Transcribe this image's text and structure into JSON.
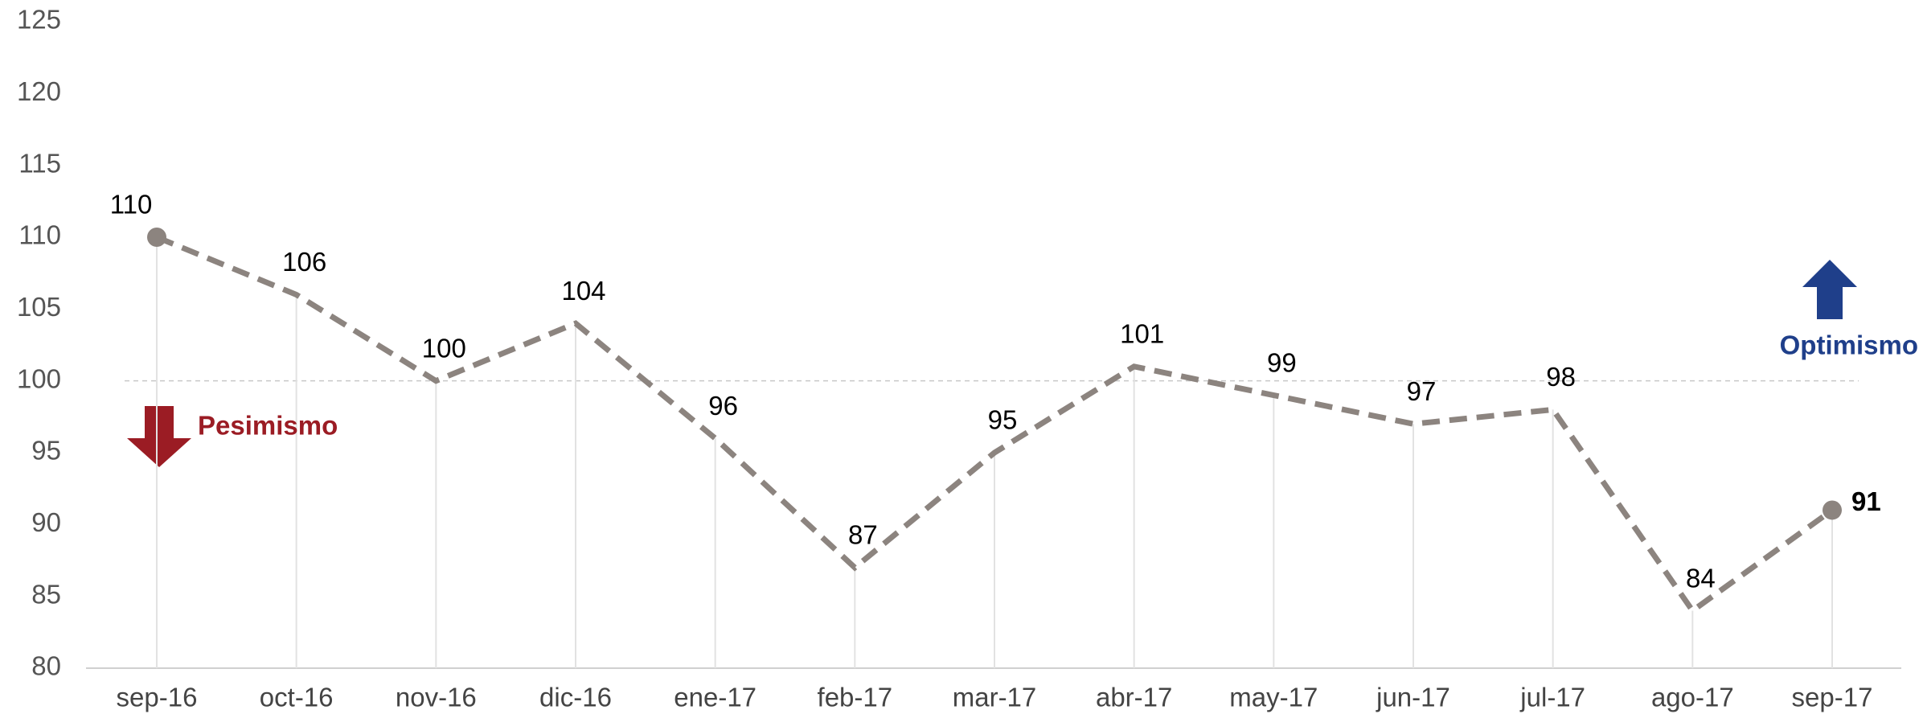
{
  "chart_data": {
    "type": "line",
    "categories": [
      "sep-16",
      "oct-16",
      "nov-16",
      "dic-16",
      "ene-17",
      "feb-17",
      "mar-17",
      "abr-17",
      "may-17",
      "jun-17",
      "jul-17",
      "ago-17",
      "sep-17"
    ],
    "series": [
      {
        "color": "#8c847f",
        "values": [
          110,
          106,
          100,
          104,
          96,
          87,
          95,
          101,
          99,
          97,
          98,
          84,
          91
        ]
      }
    ],
    "ylim": [
      80,
      125
    ],
    "yticks": [
      80,
      85,
      90,
      95,
      100,
      105,
      110,
      115,
      120,
      125
    ],
    "reference_line": 100,
    "annotations": [
      {
        "text": "Pesimismo",
        "color": "#9b1c24"
      },
      {
        "text": "Optimismo",
        "color": "#1f3f8a"
      }
    ]
  }
}
